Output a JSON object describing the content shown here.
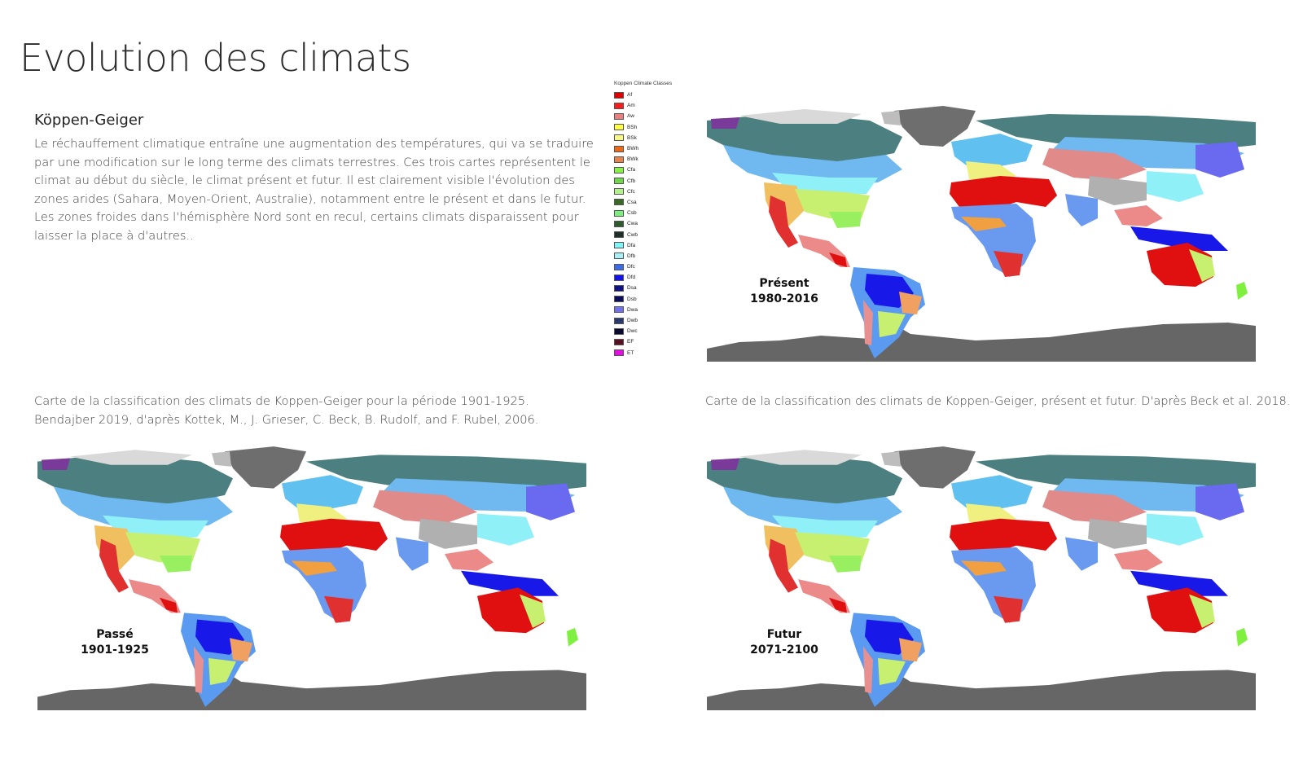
{
  "page": {
    "title": "Evolution des climats",
    "subtitle": "Köppen-Geiger",
    "intro": "Le réchauffement climatique entraîne une augmentation des températures, qui va se traduire par une modification sur le long terme des climats terrestres. Ces trois cartes représentent le climat au début du siècle, le climat présent et futur. Il est clairement visible l'évolution des zones arides (Sahara, Moyen-Orient, Australie), notamment entre le présent et dans le futur. Les zones froides dans l'hémisphère Nord sont en recul, certains climats disparaissent pour laisser la place à d'autres..",
    "caption_left": "Carte de la classification des climats de Koppen-Geiger pour la période 1901-1925. Bendajber 2019, d'après Kottek, M., J. Grieser, C. Beck, B. Rudolf, and F. Rubel, 2006.",
    "caption_right": "Carte de la classification des climats de Koppen-Geiger, présent et futur. D'après Beck et al. 2018."
  },
  "legend": {
    "title": "Koppen Climate Classes",
    "items": [
      {
        "label": "Af",
        "color": "#e00000"
      },
      {
        "label": "Am",
        "color": "#ff1a1a"
      },
      {
        "label": "Aw",
        "color": "#e88080"
      },
      {
        "label": "BSh",
        "color": "#ffff40"
      },
      {
        "label": "BSk",
        "color": "#f6f68a"
      },
      {
        "label": "BWh",
        "color": "#e86a1a"
      },
      {
        "label": "BWk",
        "color": "#e8844a"
      },
      {
        "label": "Cfa",
        "color": "#8cf04a"
      },
      {
        "label": "Cfb",
        "color": "#6ed84a"
      },
      {
        "label": "Cfc",
        "color": "#b4f08c"
      },
      {
        "label": "Csa",
        "color": "#3a6a22"
      },
      {
        "label": "Csb",
        "color": "#7cf07c"
      },
      {
        "label": "Cwa",
        "color": "#2f5a2f"
      },
      {
        "label": "Cwb",
        "color": "#1f2f2a"
      },
      {
        "label": "Dfa",
        "color": "#7ff5f5"
      },
      {
        "label": "Dfb",
        "color": "#a8f0f8"
      },
      {
        "label": "Dfc",
        "color": "#3a6af0"
      },
      {
        "label": "Dfd",
        "color": "#1414e8"
      },
      {
        "label": "Dsa",
        "color": "#10108a"
      },
      {
        "label": "Dsb",
        "color": "#0c0c5a"
      },
      {
        "label": "Dwa",
        "color": "#7070f0"
      },
      {
        "label": "Dwb",
        "color": "#2a3a70"
      },
      {
        "label": "Dwc",
        "color": "#0a0a30"
      },
      {
        "label": "EF",
        "color": "#5a1020"
      },
      {
        "label": "ET",
        "color": "#e010e0"
      }
    ]
  },
  "maps": {
    "present": {
      "label_line1": "Présent",
      "label_line2": "1980-2016"
    },
    "past": {
      "label_line1": "Passé",
      "label_line2": "1901-1925"
    },
    "future": {
      "label_line1": "Futur",
      "label_line2": "2071-2100"
    }
  }
}
